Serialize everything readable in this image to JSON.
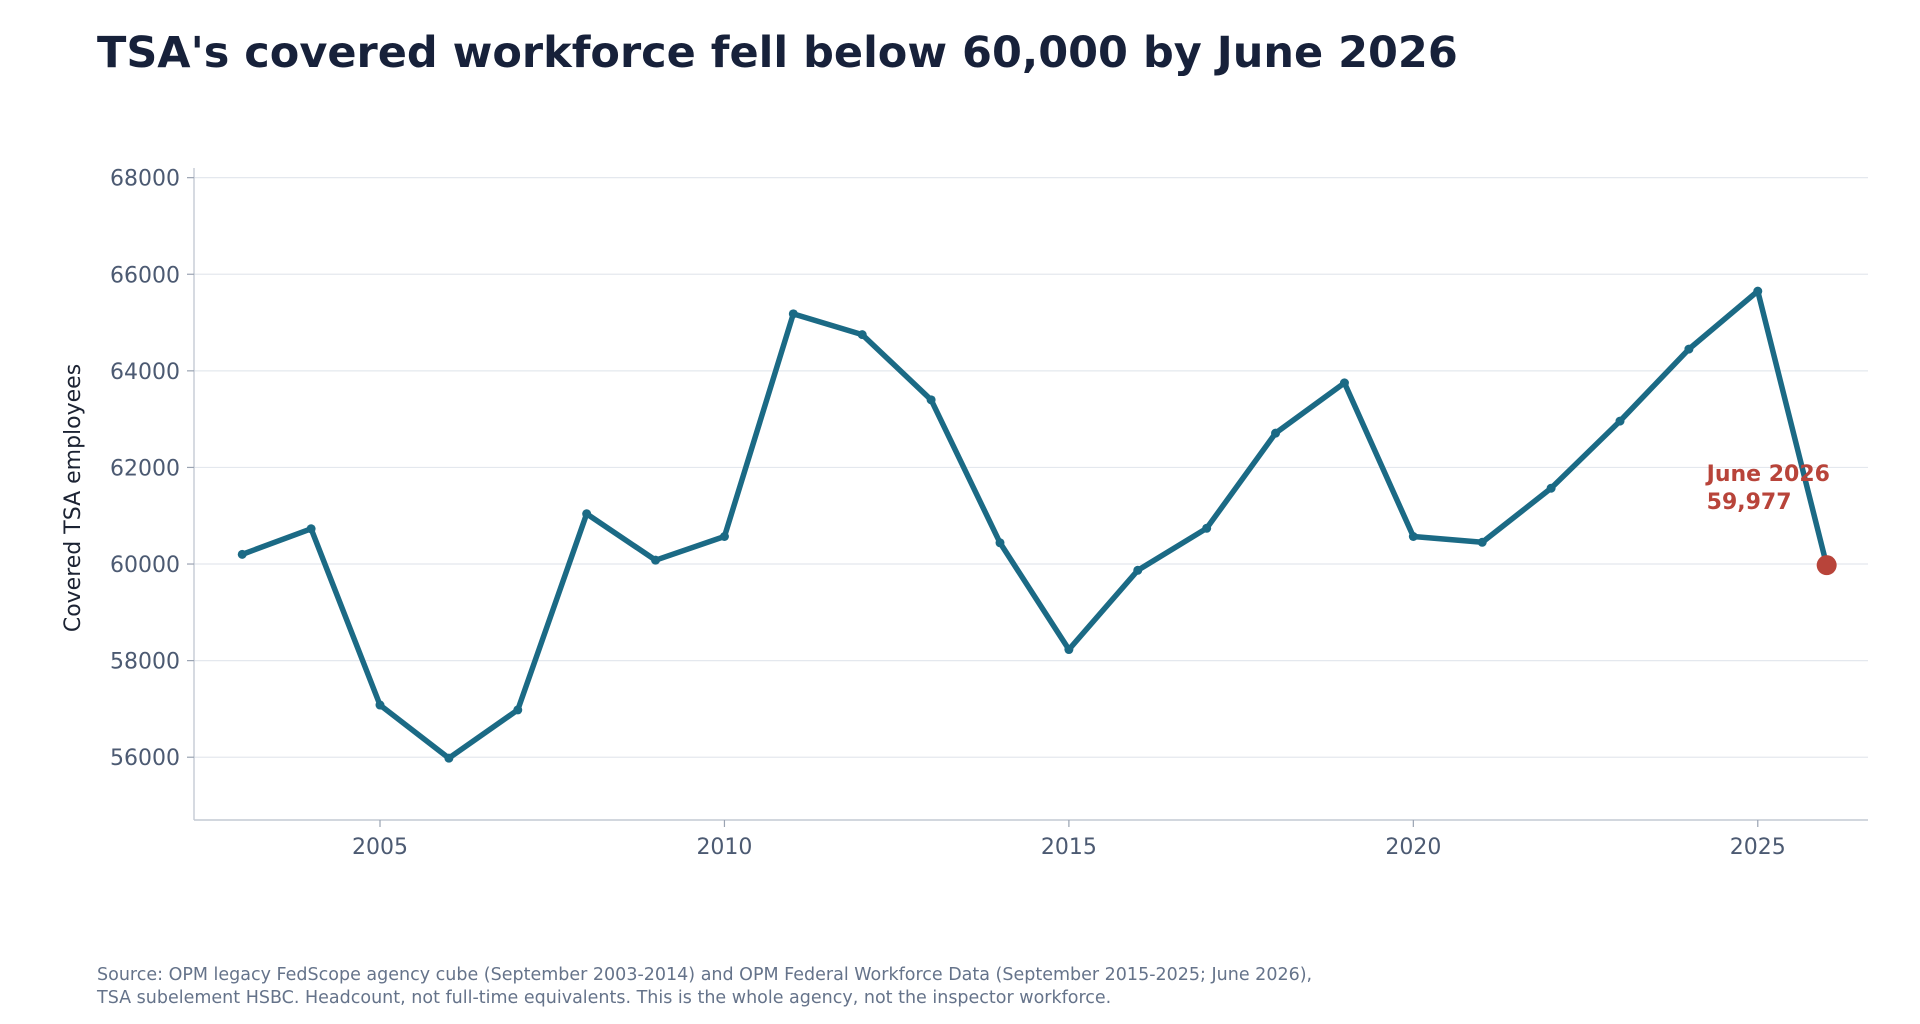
{
  "title": "TSA's covered workforce fell below 60,000 by June 2026",
  "source": {
    "line1": "Source: OPM legacy FedScope agency cube (September 2003-2014) and OPM Federal Workforce Data (September 2015-2025; June 2026),",
    "line2": "TSA subelement HSBC. Headcount, not full-time equivalents. This is the whole agency, not the inspector workforce."
  },
  "chart_data": {
    "type": "line",
    "title": "TSA's covered workforce fell below 60,000 by June 2026",
    "xlabel": "",
    "ylabel": "Covered TSA employees",
    "xlim": [
      2002.3,
      2026.6
    ],
    "ylim": [
      54700,
      68200
    ],
    "x_ticks": [
      2005,
      2010,
      2015,
      2020,
      2025
    ],
    "y_ticks": [
      56000,
      58000,
      60000,
      62000,
      64000,
      66000,
      68000
    ],
    "grid": "horizontal",
    "series": [
      {
        "x": [
          2003,
          2004,
          2005,
          2006,
          2007,
          2008,
          2009,
          2010,
          2011,
          2012,
          2013,
          2014,
          2015,
          2016,
          2017,
          2018,
          2019,
          2020,
          2021,
          2022,
          2023,
          2024,
          2025,
          2026
        ],
        "y": [
          60200,
          60730,
          57080,
          55980,
          56980,
          61040,
          60080,
          60570,
          65180,
          64750,
          63400,
          60440,
          58230,
          59870,
          60740,
          62710,
          63750,
          60570,
          60450,
          61570,
          62960,
          64450,
          65650,
          59977
        ],
        "color": "#1b6a85"
      }
    ],
    "highlight": {
      "x": 2026,
      "y": 59977,
      "label_line1": "June 2026",
      "label_line2": "59,977",
      "color": "#b8443a"
    }
  }
}
